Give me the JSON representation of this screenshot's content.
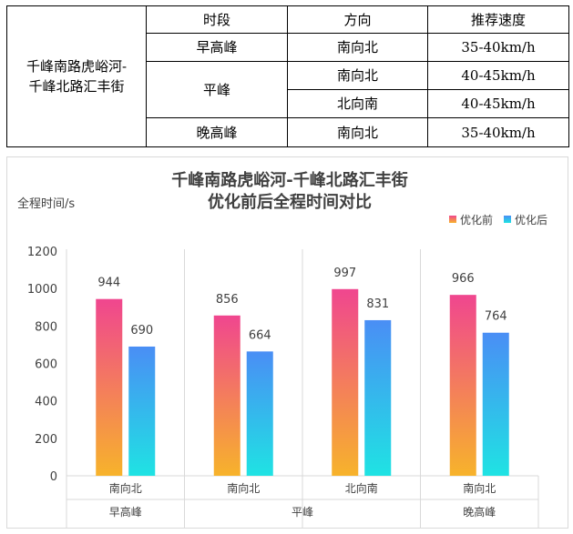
{
  "table": {
    "route_line1": "千峰南路虎峪河-",
    "route_line2": "千峰北路汇丰街",
    "headers": [
      "时段",
      "方向",
      "推荐速度"
    ],
    "rows": [
      {
        "period": "早高峰",
        "direction": "南向北",
        "speed": "35-40km/h"
      },
      {
        "period": "平峰",
        "direction": "南向北",
        "speed": "40-45km/h"
      },
      {
        "period": "",
        "direction": "北向南",
        "speed": "40-45km/h"
      },
      {
        "period": "晚高峰",
        "direction": "南向北",
        "speed": "35-40km/h"
      }
    ]
  },
  "chart_data": {
    "type": "bar",
    "title_line1": "千峰南路虎峪河-千峰北路汇丰街",
    "title_line2": "优化前后全程时间对比",
    "ylabel": "全程时间/s",
    "ylim": [
      0,
      1200
    ],
    "yticks": [
      0,
      200,
      400,
      600,
      800,
      1000,
      1200
    ],
    "categories": [
      "南向北",
      "南向北",
      "北向南",
      "南向北"
    ],
    "groups": [
      {
        "label": "早高峰",
        "span": 1
      },
      {
        "label": "平峰",
        "span": 2
      },
      {
        "label": "晚高峰",
        "span": 1
      }
    ],
    "legend_position": "top-right",
    "grid": false,
    "series": [
      {
        "name": "优化前",
        "values": [
          944,
          856,
          997,
          966
        ],
        "gradient": [
          "#f0468f",
          "#f7b32b"
        ]
      },
      {
        "name": "优化后",
        "values": [
          690,
          664,
          831,
          764
        ],
        "gradient": [
          "#4a8ef5",
          "#1fe3e3"
        ]
      }
    ]
  }
}
